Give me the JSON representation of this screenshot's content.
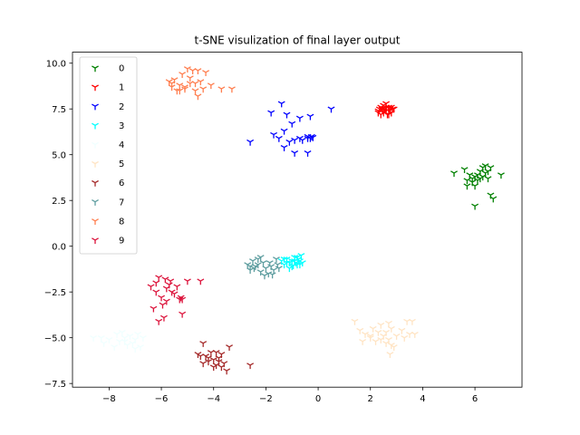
{
  "chart_data": {
    "type": "scatter",
    "title": "t-SNE visulization of final layer output",
    "xlabel": "",
    "ylabel": "",
    "xlim": [
      -9.4,
      7.8
    ],
    "ylim": [
      -7.7,
      10.6
    ],
    "x_ticks": [
      -8,
      -6,
      -4,
      -2,
      0,
      2,
      4,
      6
    ],
    "x_tick_labels": [
      "−8",
      "−6",
      "−4",
      "−2",
      "0",
      "2",
      "4",
      "6"
    ],
    "y_ticks": [
      -7.5,
      -5.0,
      -2.5,
      0.0,
      2.5,
      5.0,
      7.5,
      10.0
    ],
    "y_tick_labels": [
      "−7.5",
      "−5.0",
      "−2.5",
      "0.0",
      "2.5",
      "5.0",
      "7.5",
      "10.0"
    ],
    "grid": false,
    "legend_position": "top-left",
    "marker": "tri_down",
    "series": [
      {
        "name": "0",
        "color": "#008000",
        "points": [
          [
            5.2,
            4.0
          ],
          [
            5.6,
            4.2
          ],
          [
            5.7,
            3.6
          ],
          [
            5.8,
            3.9
          ],
          [
            5.7,
            3.3
          ],
          [
            5.9,
            3.5
          ],
          [
            6.0,
            3.8
          ],
          [
            6.0,
            3.3
          ],
          [
            6.1,
            3.9
          ],
          [
            6.1,
            3.6
          ],
          [
            6.2,
            4.1
          ],
          [
            6.3,
            3.8
          ],
          [
            6.3,
            4.3
          ],
          [
            6.4,
            4.0
          ],
          [
            6.4,
            4.4
          ],
          [
            6.5,
            4.1
          ],
          [
            6.5,
            3.7
          ],
          [
            6.6,
            4.3
          ],
          [
            6.6,
            2.8
          ],
          [
            6.7,
            2.6
          ],
          [
            7.0,
            3.9
          ],
          [
            6.0,
            2.2
          ],
          [
            5.9,
            3.7
          ],
          [
            6.2,
            3.7
          ]
        ]
      },
      {
        "name": "1",
        "color": "#ff0000",
        "points": [
          [
            2.3,
            7.4
          ],
          [
            2.35,
            7.5
          ],
          [
            2.4,
            7.6
          ],
          [
            2.4,
            7.2
          ],
          [
            2.5,
            7.7
          ],
          [
            2.5,
            7.3
          ],
          [
            2.55,
            7.5
          ],
          [
            2.6,
            7.8
          ],
          [
            2.6,
            7.4
          ],
          [
            2.65,
            7.2
          ],
          [
            2.7,
            7.6
          ],
          [
            2.7,
            7.4
          ],
          [
            2.75,
            7.5
          ],
          [
            2.8,
            7.3
          ],
          [
            2.8,
            7.6
          ],
          [
            2.85,
            7.5
          ],
          [
            2.45,
            7.5
          ],
          [
            2.6,
            7.6
          ],
          [
            2.7,
            7.2
          ],
          [
            2.5,
            7.4
          ],
          [
            2.9,
            7.5
          ],
          [
            2.3,
            7.3
          ]
        ]
      },
      {
        "name": "2",
        "color": "#0000ff",
        "points": [
          [
            -2.6,
            5.7
          ],
          [
            -1.8,
            7.3
          ],
          [
            -1.4,
            7.8
          ],
          [
            -1.2,
            7.2
          ],
          [
            -0.7,
            7.0
          ],
          [
            -0.3,
            7.1
          ],
          [
            0.5,
            7.5
          ],
          [
            -1.7,
            6.1
          ],
          [
            -1.5,
            5.9
          ],
          [
            -1.3,
            6.3
          ],
          [
            -1.1,
            5.7
          ],
          [
            -0.9,
            5.8
          ],
          [
            -0.7,
            5.9
          ],
          [
            -0.4,
            6.0
          ],
          [
            -0.3,
            5.9
          ],
          [
            -0.25,
            6.0
          ],
          [
            -0.4,
            5.9
          ],
          [
            -1.3,
            5.4
          ],
          [
            -0.9,
            5.1
          ],
          [
            -0.4,
            5.1
          ],
          [
            -1.0,
            6.7
          ],
          [
            -0.6,
            5.8
          ],
          [
            -0.2,
            5.95
          ]
        ]
      },
      {
        "name": "3",
        "color": "#00ffff",
        "points": [
          [
            -1.4,
            -0.8
          ],
          [
            -1.3,
            -1.0
          ],
          [
            -1.2,
            -0.9
          ],
          [
            -1.1,
            -1.2
          ],
          [
            -1.0,
            -0.8
          ],
          [
            -0.9,
            -0.6
          ],
          [
            -0.85,
            -0.9
          ],
          [
            -0.8,
            -1.0
          ],
          [
            -0.75,
            -0.7
          ],
          [
            -0.7,
            -0.8
          ],
          [
            -0.65,
            -0.5
          ],
          [
            -0.6,
            -0.9
          ],
          [
            -1.2,
            -0.7
          ],
          [
            -1.0,
            -1.1
          ],
          [
            -0.9,
            -0.8
          ],
          [
            -0.8,
            -0.6
          ],
          [
            -1.1,
            -0.9
          ],
          [
            -1.3,
            -0.7
          ],
          [
            -0.7,
            -1.0
          ],
          [
            -0.95,
            -1.05
          ]
        ]
      },
      {
        "name": "4",
        "color": "#f0ffff",
        "points": [
          [
            -8.6,
            -5.0
          ],
          [
            -8.2,
            -5.3
          ],
          [
            -8.0,
            -5.1
          ],
          [
            -7.8,
            -5.5
          ],
          [
            -7.6,
            -5.2
          ],
          [
            -7.5,
            -4.7
          ],
          [
            -7.4,
            -5.0
          ],
          [
            -7.3,
            -5.4
          ],
          [
            -7.2,
            -4.9
          ],
          [
            -7.1,
            -5.3
          ],
          [
            -7.0,
            -5.1
          ],
          [
            -6.9,
            -4.8
          ],
          [
            -6.8,
            -5.5
          ],
          [
            -6.7,
            -5.0
          ],
          [
            -7.7,
            -4.8
          ],
          [
            -8.3,
            -5.0
          ],
          [
            -7.0,
            -5.6
          ],
          [
            -7.4,
            -5.2
          ]
        ]
      },
      {
        "name": "5",
        "color": "#ffe4c4",
        "points": [
          [
            1.4,
            -4.1
          ],
          [
            1.6,
            -4.6
          ],
          [
            1.7,
            -5.2
          ],
          [
            1.8,
            -4.8
          ],
          [
            2.0,
            -4.9
          ],
          [
            2.1,
            -4.5
          ],
          [
            2.2,
            -5.2
          ],
          [
            2.3,
            -4.7
          ],
          [
            2.4,
            -4.3
          ],
          [
            2.5,
            -4.9
          ],
          [
            2.6,
            -4.7
          ],
          [
            2.7,
            -5.1
          ],
          [
            2.8,
            -4.5
          ],
          [
            2.7,
            -4.2
          ],
          [
            2.6,
            -5.3
          ],
          [
            2.75,
            -5.9
          ],
          [
            2.8,
            -5.4
          ],
          [
            3.0,
            -4.9
          ],
          [
            3.2,
            -4.6
          ],
          [
            3.3,
            -5.0
          ],
          [
            3.4,
            -4.1
          ],
          [
            3.5,
            -4.8
          ],
          [
            3.6,
            -4.1
          ],
          [
            3.7,
            -4.8
          ],
          [
            2.9,
            -5.5
          ],
          [
            2.0,
            -5.0
          ],
          [
            2.4,
            -5.1
          ]
        ]
      },
      {
        "name": "6",
        "color": "#a52a2a",
        "points": [
          [
            -4.6,
            -5.9
          ],
          [
            -4.4,
            -5.3
          ],
          [
            -4.3,
            -6.0
          ],
          [
            -4.2,
            -6.3
          ],
          [
            -4.1,
            -5.8
          ],
          [
            -4.0,
            -6.2
          ],
          [
            -3.9,
            -6.5
          ],
          [
            -3.8,
            -6.1
          ],
          [
            -3.7,
            -5.9
          ],
          [
            -3.6,
            -6.4
          ],
          [
            -3.5,
            -6.8
          ],
          [
            -3.4,
            -5.5
          ],
          [
            -4.5,
            -6.0
          ],
          [
            -4.2,
            -6.1
          ],
          [
            -3.9,
            -5.8
          ],
          [
            -4.0,
            -6.6
          ],
          [
            -3.7,
            -6.6
          ],
          [
            -2.6,
            -6.5
          ],
          [
            -4.4,
            -6.4
          ],
          [
            -3.8,
            -6.3
          ]
        ]
      },
      {
        "name": "7",
        "color": "#5f9ea0",
        "points": [
          [
            -2.7,
            -1.0
          ],
          [
            -2.6,
            -1.3
          ],
          [
            -2.5,
            -0.8
          ],
          [
            -2.45,
            -1.2
          ],
          [
            -2.4,
            -1.1
          ],
          [
            -2.3,
            -0.7
          ],
          [
            -2.2,
            -1.4
          ],
          [
            -2.1,
            -0.9
          ],
          [
            -2.0,
            -1.2
          ],
          [
            -1.9,
            -1.5
          ],
          [
            -1.8,
            -1.1
          ],
          [
            -1.7,
            -1.3
          ],
          [
            -1.6,
            -0.7
          ],
          [
            -1.55,
            -1.0
          ],
          [
            -1.5,
            -1.2
          ],
          [
            -2.6,
            -1.1
          ],
          [
            -2.3,
            -1.0
          ],
          [
            -1.85,
            -0.9
          ],
          [
            -2.05,
            -1.6
          ],
          [
            -1.75,
            -1.55
          ],
          [
            -2.2,
            -0.6
          ]
        ]
      },
      {
        "name": "8",
        "color": "#ff7f50",
        "points": [
          [
            -5.7,
            9.0
          ],
          [
            -5.6,
            8.7
          ],
          [
            -5.5,
            9.1
          ],
          [
            -5.4,
            8.5
          ],
          [
            -5.3,
            8.8
          ],
          [
            -5.2,
            9.4
          ],
          [
            -5.1,
            8.7
          ],
          [
            -5.0,
            9.7
          ],
          [
            -4.9,
            9.2
          ],
          [
            -4.8,
            9.6
          ],
          [
            -4.7,
            8.9
          ],
          [
            -4.6,
            8.2
          ],
          [
            -4.5,
            9.0
          ],
          [
            -4.4,
            8.6
          ],
          [
            -4.3,
            9.5
          ],
          [
            -4.1,
            8.8
          ],
          [
            -3.7,
            8.6
          ],
          [
            -3.3,
            8.6
          ],
          [
            -5.3,
            8.5
          ],
          [
            -4.9,
            8.9
          ],
          [
            -4.6,
            9.6
          ],
          [
            -5.1,
            8.6
          ],
          [
            -4.7,
            8.5
          ],
          [
            -5.6,
            8.9
          ]
        ]
      },
      {
        "name": "9",
        "color": "#dc143c",
        "points": [
          [
            -6.4,
            -2.2
          ],
          [
            -6.3,
            -3.4
          ],
          [
            -6.2,
            -2.5
          ],
          [
            -6.1,
            -4.1
          ],
          [
            -6.1,
            -1.7
          ],
          [
            -6.0,
            -2.8
          ],
          [
            -5.95,
            -3.2
          ],
          [
            -5.9,
            -3.9
          ],
          [
            -5.85,
            -1.8
          ],
          [
            -5.8,
            -2.3
          ],
          [
            -5.7,
            -2.1
          ],
          [
            -5.65,
            -1.9
          ],
          [
            -5.5,
            -2.6
          ],
          [
            -5.4,
            -2.2
          ],
          [
            -5.3,
            -2.9
          ],
          [
            -5.25,
            -2.8
          ],
          [
            -5.2,
            -2.9
          ],
          [
            -5.2,
            -3.7
          ],
          [
            -5.0,
            -1.9
          ],
          [
            -4.5,
            -1.9
          ],
          [
            -6.2,
            -2.0
          ],
          [
            -5.8,
            -3.0
          ],
          [
            -5.6,
            -2.5
          ]
        ]
      }
    ]
  }
}
